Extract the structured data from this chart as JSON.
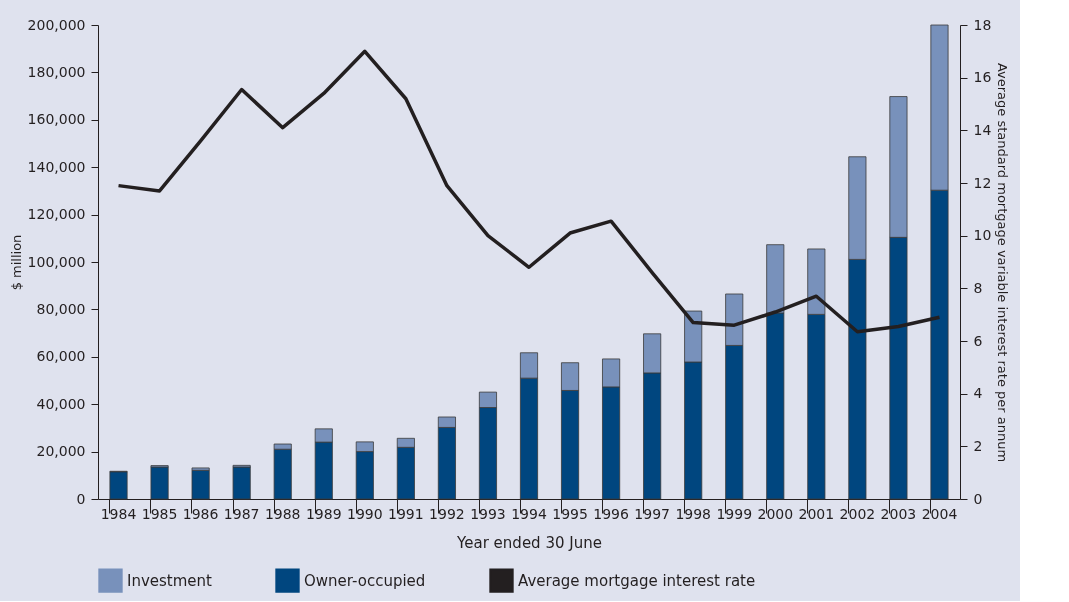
{
  "chart_data": {
    "type": "bar",
    "stacked": true,
    "categories": [
      "1984",
      "1985",
      "1986",
      "1987",
      "1988",
      "1989",
      "1990",
      "1991",
      "1992",
      "1993",
      "1994",
      "1995",
      "1996",
      "1997",
      "1998",
      "1999",
      "2000",
      "2001",
      "2002",
      "2003",
      "2004"
    ],
    "series": [
      {
        "name": "Owner-occupied",
        "color": "#00467f",
        "values": [
          11500,
          13500,
          12100,
          13500,
          21000,
          24000,
          20000,
          21800,
          30200,
          38600,
          51000,
          45800,
          47300,
          53200,
          57800,
          64800,
          78500,
          77900,
          101100,
          110400,
          130300
        ]
      },
      {
        "name": "Investment",
        "color": "#7891bb",
        "values": [
          200,
          600,
          1000,
          700,
          2200,
          5600,
          4100,
          3800,
          4400,
          6500,
          10700,
          11700,
          11800,
          16500,
          21500,
          21700,
          28800,
          27600,
          43300,
          59400,
          69700
        ]
      },
      {
        "name": "Average mortgage interest rate",
        "color": "#231f20",
        "type": "line",
        "axis": "y2",
        "values": [
          11.9,
          11.7,
          13.6,
          15.55,
          14.1,
          15.4,
          17.0,
          15.2,
          11.9,
          10.0,
          8.8,
          10.1,
          10.55,
          8.6,
          6.7,
          6.6,
          7.1,
          7.7,
          6.35,
          6.55,
          6.9
        ]
      }
    ],
    "xlabel": "Year ended 30 June",
    "ylabel": "$ million",
    "y2label": "Average standard mortgage variable interest rate per annum",
    "ylim": [
      0,
      200000
    ],
    "yticks": [
      0,
      {
        "value": 20000,
        "label": "20,000"
      },
      {
        "value": 40000,
        "label": "40,000"
      },
      {
        "value": 60000,
        "label": "60,000"
      },
      {
        "value": 80000,
        "label": "80,000"
      },
      {
        "value": 100000,
        "label": "100,000"
      },
      {
        "value": 120000,
        "label": "120,000"
      },
      {
        "value": 140000,
        "label": "140,000"
      },
      {
        "value": 160000,
        "label": "160,000"
      },
      {
        "value": 180000,
        "label": "180,000"
      },
      {
        "value": 200000,
        "label": "200,000"
      }
    ],
    "y2lim": [
      0,
      18
    ],
    "y2ticks": [
      0,
      2,
      4,
      6,
      8,
      10,
      12,
      14,
      16,
      18
    ],
    "grid": false,
    "legend": "bottom",
    "marker": "none",
    "line_style": "solid"
  }
}
